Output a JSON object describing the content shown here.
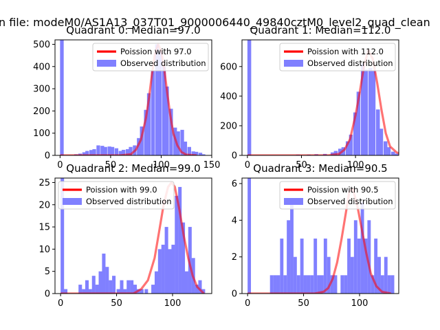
{
  "figure": {
    "suptitle": "n file: modeM0/AS1A13_037T01_9000006440_49840cztM0_level2_quad_clean"
  },
  "colors": {
    "histogram": "#8080ff",
    "poisson_curve": "#ff0000",
    "legend_border": "#cccccc"
  },
  "chart_data": [
    {
      "type": "bar",
      "title": "Quadrant 0: Median=97.0",
      "xlim": [
        -5,
        150
      ],
      "ylim": [
        0,
        520
      ],
      "xticks": [
        0,
        50,
        100,
        150
      ],
      "yticks": [
        0,
        100,
        200,
        300,
        400,
        500
      ],
      "bin_width": 3.6,
      "bins": [
        [
          0,
          520
        ],
        [
          14,
          5
        ],
        [
          18,
          8
        ],
        [
          22,
          14
        ],
        [
          25,
          20
        ],
        [
          29,
          24
        ],
        [
          32,
          28
        ],
        [
          36,
          45
        ],
        [
          40,
          43
        ],
        [
          43,
          38
        ],
        [
          47,
          40
        ],
        [
          50,
          38
        ],
        [
          54,
          32
        ],
        [
          58,
          20
        ],
        [
          61,
          25
        ],
        [
          65,
          28
        ],
        [
          68,
          38
        ],
        [
          72,
          45
        ],
        [
          76,
          78
        ],
        [
          79,
          130
        ],
        [
          83,
          205
        ],
        [
          86,
          280
        ],
        [
          90,
          380
        ],
        [
          94,
          500
        ],
        [
          97,
          470
        ],
        [
          101,
          400
        ],
        [
          104,
          310
        ],
        [
          108,
          210
        ],
        [
          112,
          125
        ],
        [
          115,
          108
        ],
        [
          119,
          115
        ],
        [
          122,
          62
        ],
        [
          126,
          38
        ],
        [
          130,
          18
        ],
        [
          133,
          16
        ],
        [
          137,
          12
        ],
        [
          140,
          5
        ]
      ],
      "series": [
        {
          "name": "Poission with 97.0",
          "kind": "line",
          "x": [
            0,
            60,
            70,
            75,
            80,
            85,
            88,
            91,
            94,
            97,
            100,
            103,
            106,
            109,
            112,
            116,
            120,
            125,
            135
          ],
          "y": [
            0,
            0,
            5,
            25,
            70,
            170,
            260,
            370,
            460,
            500,
            470,
            390,
            280,
            180,
            100,
            45,
            15,
            3,
            0
          ]
        },
        {
          "name": "Observed distribution",
          "kind": "hist"
        }
      ],
      "legend": "top-right"
    },
    {
      "type": "bar",
      "title": "Quadrant 1: Median=112.0",
      "xlim": [
        -5,
        140
      ],
      "ylim": [
        0,
        780
      ],
      "xticks": [
        0,
        50,
        100
      ],
      "yticks": [
        0,
        200,
        400,
        600
      ],
      "bin_width": 3.5,
      "bins": [
        [
          0,
          780
        ],
        [
          45,
          5
        ],
        [
          55,
          5
        ],
        [
          62,
          8
        ],
        [
          70,
          10
        ],
        [
          77,
          20
        ],
        [
          80,
          30
        ],
        [
          84,
          45
        ],
        [
          87,
          55
        ],
        [
          91,
          95
        ],
        [
          94,
          140
        ],
        [
          98,
          290
        ],
        [
          101,
          430
        ],
        [
          105,
          620
        ],
        [
          108,
          580
        ],
        [
          112,
          590
        ],
        [
          115,
          570
        ],
        [
          119,
          310
        ],
        [
          122,
          180
        ],
        [
          126,
          95
        ],
        [
          129,
          55
        ],
        [
          133,
          25
        ],
        [
          136,
          12
        ],
        [
          140,
          5
        ]
      ],
      "series": [
        {
          "name": "Poission with 112.0",
          "kind": "line",
          "x": [
            0,
            75,
            85,
            90,
            95,
            100,
            104,
            108,
            112,
            116,
            120,
            124,
            128,
            132,
            138,
            142,
            148,
            172
          ],
          "y": [
            0,
            0,
            10,
            40,
            110,
            270,
            430,
            610,
            710,
            650,
            490,
            310,
            150,
            60,
            20,
            8,
            2,
            0
          ]
        },
        {
          "name": "Observed distribution",
          "kind": "hist"
        }
      ],
      "legend": "top-right"
    },
    {
      "type": "bar",
      "title": "Quadrant 2: Median=99.0",
      "xlim": [
        -5,
        135
      ],
      "ylim": [
        0,
        26
      ],
      "xticks": [
        0,
        50,
        100
      ],
      "yticks": [
        0,
        5,
        10,
        15,
        20,
        25
      ],
      "bin_width": 3.1,
      "bins": [
        [
          0,
          26
        ],
        [
          3,
          1
        ],
        [
          16,
          2
        ],
        [
          19,
          1
        ],
        [
          22,
          3
        ],
        [
          25,
          1
        ],
        [
          28,
          4
        ],
        [
          31,
          2
        ],
        [
          34,
          5
        ],
        [
          37,
          9
        ],
        [
          40,
          6
        ],
        [
          43,
          3
        ],
        [
          46,
          4
        ],
        [
          50,
          1
        ],
        [
          53,
          3
        ],
        [
          56,
          1
        ],
        [
          59,
          3
        ],
        [
          62,
          3
        ],
        [
          65,
          2
        ],
        [
          68,
          1
        ],
        [
          71,
          1
        ],
        [
          75,
          1
        ],
        [
          81,
          2
        ],
        [
          84,
          5
        ],
        [
          87,
          10
        ],
        [
          90,
          11
        ],
        [
          93,
          15
        ],
        [
          96,
          10
        ],
        [
          99,
          11
        ],
        [
          102,
          22
        ],
        [
          105,
          24
        ],
        [
          108,
          16
        ],
        [
          111,
          5
        ],
        [
          114,
          15
        ],
        [
          117,
          8
        ],
        [
          120,
          2
        ],
        [
          123,
          3
        ],
        [
          126,
          1
        ]
      ],
      "series": [
        {
          "name": "Poission with 99.0",
          "kind": "line",
          "x": [
            0,
            65,
            72,
            78,
            84,
            88,
            92,
            96,
            99,
            102,
            106,
            110,
            114,
            118,
            122,
            128
          ],
          "y": [
            0,
            0,
            1,
            3,
            8,
            14,
            20,
            24,
            25,
            24,
            19,
            13,
            8,
            4,
            1.5,
            0
          ]
        },
        {
          "name": "Observed distribution",
          "kind": "hist"
        }
      ],
      "legend": "top-left"
    },
    {
      "type": "bar",
      "title": "Quadrant 3: Median=90.5",
      "xlim": [
        -5,
        135
      ],
      "ylim": [
        0,
        6.3
      ],
      "xticks": [
        0,
        50,
        100
      ],
      "yticks": [
        0,
        2,
        4,
        6
      ],
      "bin_width": 3.0,
      "bins": [
        [
          0,
          6.3
        ],
        [
          20,
          1
        ],
        [
          23,
          1
        ],
        [
          26,
          1
        ],
        [
          29,
          3
        ],
        [
          32,
          1
        ],
        [
          35,
          4
        ],
        [
          38,
          5
        ],
        [
          41,
          2
        ],
        [
          44,
          1
        ],
        [
          47,
          3
        ],
        [
          50,
          1
        ],
        [
          53,
          1
        ],
        [
          56,
          1
        ],
        [
          59,
          3
        ],
        [
          62,
          1
        ],
        [
          65,
          1
        ],
        [
          68,
          3
        ],
        [
          71,
          2
        ],
        [
          74,
          1
        ],
        [
          77,
          1
        ],
        [
          83,
          1
        ],
        [
          86,
          1
        ],
        [
          89,
          3
        ],
        [
          92,
          2
        ],
        [
          95,
          4
        ],
        [
          98,
          3
        ],
        [
          101,
          5
        ],
        [
          104,
          3
        ],
        [
          107,
          4
        ],
        [
          110,
          1
        ],
        [
          113,
          3
        ],
        [
          116,
          2
        ],
        [
          119,
          1
        ],
        [
          122,
          2
        ],
        [
          125,
          1
        ],
        [
          128,
          1
        ]
      ],
      "series": [
        {
          "name": "Poission with 90.5",
          "kind": "line",
          "x": [
            0,
            60,
            68,
            72,
            76,
            80,
            84,
            88,
            91,
            94,
            98,
            102,
            106,
            110,
            115,
            120,
            128
          ],
          "y": [
            0,
            0,
            0.1,
            0.3,
            0.8,
            1.7,
            3,
            4.5,
            5.6,
            5.7,
            4.8,
            3.5,
            2.2,
            1.1,
            0.4,
            0.1,
            0
          ]
        },
        {
          "name": "Observed distribution",
          "kind": "hist"
        }
      ],
      "legend": "top-right"
    }
  ]
}
